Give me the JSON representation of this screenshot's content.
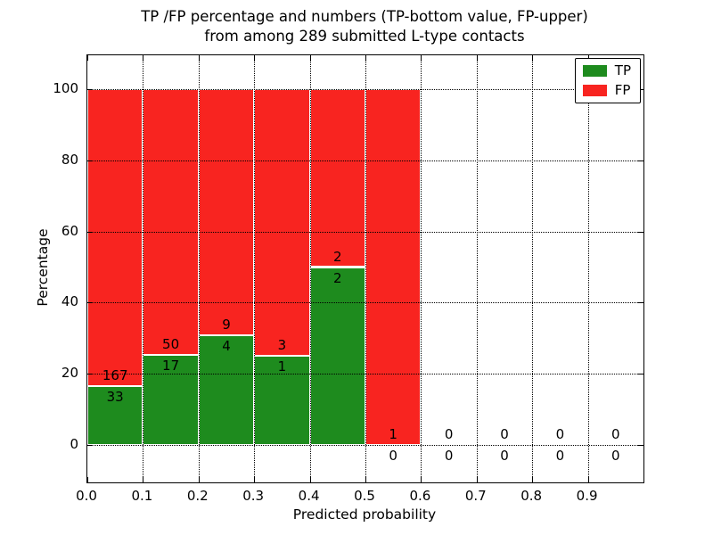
{
  "chart_data": {
    "type": "bar",
    "stacked": true,
    "title": "TP /FP percentage and numbers (TP-bottom value, FP-upper) from among 289 submitted L-type contacts",
    "title_line1": "TP /FP percentage and numbers (TP-bottom value, FP-upper)",
    "title_line2": "from among 289 submitted L-type contacts",
    "xlabel": "Predicted probability",
    "ylabel": "Percentage",
    "xlim": [
      0.0,
      1.0
    ],
    "ylim": [
      -10.5,
      109.5
    ],
    "grid": "dotted",
    "xticks": {
      "values": [
        0.0,
        0.1,
        0.2,
        0.3,
        0.4,
        0.5,
        0.6,
        0.7,
        0.8,
        0.9
      ],
      "labels": [
        "0.0",
        "0.1",
        "0.2",
        "0.3",
        "0.4",
        "0.5",
        "0.6",
        "0.7",
        "0.8",
        "0.9"
      ]
    },
    "yticks": {
      "values": [
        0,
        20,
        40,
        60,
        80,
        100
      ],
      "labels": [
        "0",
        "20",
        "40",
        "60",
        "80",
        "100"
      ]
    },
    "colors": {
      "tp": "#1e8b1e",
      "fp": "#f82420",
      "bar_edge": "#ffffff",
      "grid": "#000000",
      "text": "#000000"
    },
    "legend": {
      "position": "upper right",
      "entries": [
        {
          "name": "TP",
          "color_key": "tp"
        },
        {
          "name": "FP",
          "color_key": "fp"
        }
      ]
    },
    "bins": [
      {
        "x_start": 0.0,
        "x_end": 0.1,
        "tp_count": 33,
        "fp_count": 167,
        "tp_pct": 16.5,
        "fp_pct": 83.5
      },
      {
        "x_start": 0.1,
        "x_end": 0.2,
        "tp_count": 17,
        "fp_count": 50,
        "tp_pct": 25.37,
        "fp_pct": 74.63
      },
      {
        "x_start": 0.2,
        "x_end": 0.3,
        "tp_count": 4,
        "fp_count": 9,
        "tp_pct": 30.77,
        "fp_pct": 69.23
      },
      {
        "x_start": 0.3,
        "x_end": 0.4,
        "tp_count": 1,
        "fp_count": 3,
        "tp_pct": 25.0,
        "fp_pct": 75.0
      },
      {
        "x_start": 0.4,
        "x_end": 0.5,
        "tp_count": 2,
        "fp_count": 2,
        "tp_pct": 50.0,
        "fp_pct": 50.0
      },
      {
        "x_start": 0.5,
        "x_end": 0.6,
        "tp_count": 0,
        "fp_count": 1,
        "tp_pct": 0.0,
        "fp_pct": 100.0
      },
      {
        "x_start": 0.6,
        "x_end": 0.7,
        "tp_count": 0,
        "fp_count": 0,
        "tp_pct": 0.0,
        "fp_pct": 0.0
      },
      {
        "x_start": 0.7,
        "x_end": 0.8,
        "tp_count": 0,
        "fp_count": 0,
        "tp_pct": 0.0,
        "fp_pct": 0.0
      },
      {
        "x_start": 0.8,
        "x_end": 0.9,
        "tp_count": 0,
        "fp_count": 0,
        "tp_pct": 0.0,
        "fp_pct": 0.0
      },
      {
        "x_start": 0.9,
        "x_end": 1.0,
        "tp_count": 0,
        "fp_count": 0,
        "tp_pct": 0.0,
        "fp_pct": 0.0
      }
    ]
  }
}
